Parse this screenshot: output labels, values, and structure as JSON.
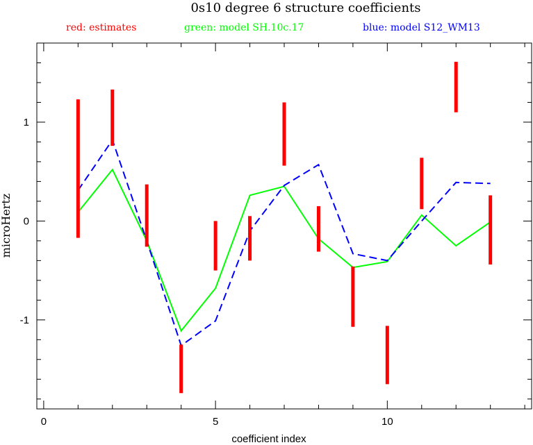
{
  "chart_data": {
    "type": "line",
    "title": "0s10 degree 6 structure coefficients",
    "xlabel": "coefficient index",
    "ylabel": "microHertz",
    "xlim": [
      -0.2,
      14.2
    ],
    "ylim": [
      -1.9,
      1.8
    ],
    "x_ticks": [
      0,
      5,
      10
    ],
    "y_ticks": [
      -1,
      0,
      1
    ],
    "grid": false,
    "legend_position": "top",
    "legend": [
      {
        "label": "red: estimates",
        "color": "#ff0000"
      },
      {
        "label": "green: model SH.10c.17",
        "color": "#00ff00"
      },
      {
        "label": "blue: model S12_WM13",
        "color": "#0000ff"
      }
    ],
    "estimates": {
      "name": "estimates",
      "style": "error-bar",
      "color": "#ff0000",
      "x": [
        1,
        2,
        3,
        4,
        5,
        6,
        7,
        8,
        9,
        10,
        11,
        12,
        13
      ],
      "low": [
        -0.17,
        0.76,
        -0.26,
        -1.74,
        -0.5,
        -0.4,
        0.56,
        -0.31,
        -1.07,
        -1.65,
        0.12,
        1.1,
        -0.44
      ],
      "high": [
        1.23,
        1.33,
        0.37,
        -1.25,
        0.0,
        0.05,
        1.2,
        0.15,
        -0.46,
        -1.06,
        0.64,
        1.61,
        0.26
      ]
    },
    "series": [
      {
        "name": "model SH.10c.17",
        "color": "#00ff00",
        "dash": "solid",
        "x": [
          1,
          2,
          3,
          4,
          5,
          6,
          7,
          8,
          9,
          10,
          11,
          12,
          13
        ],
        "values": [
          0.09,
          0.52,
          -0.2,
          -1.11,
          -0.68,
          0.26,
          0.35,
          -0.18,
          -0.47,
          -0.41,
          0.06,
          -0.25,
          -0.01
        ]
      },
      {
        "name": "model S12_WM13",
        "color": "#0000ff",
        "dash": "dashed",
        "x": [
          1,
          2,
          3,
          4,
          5,
          6,
          7,
          8,
          9,
          10,
          11,
          12,
          13
        ],
        "values": [
          0.31,
          0.82,
          -0.2,
          -1.26,
          -1.01,
          -0.1,
          0.36,
          0.57,
          -0.33,
          -0.4,
          0.0,
          0.39,
          0.38
        ]
      }
    ]
  }
}
